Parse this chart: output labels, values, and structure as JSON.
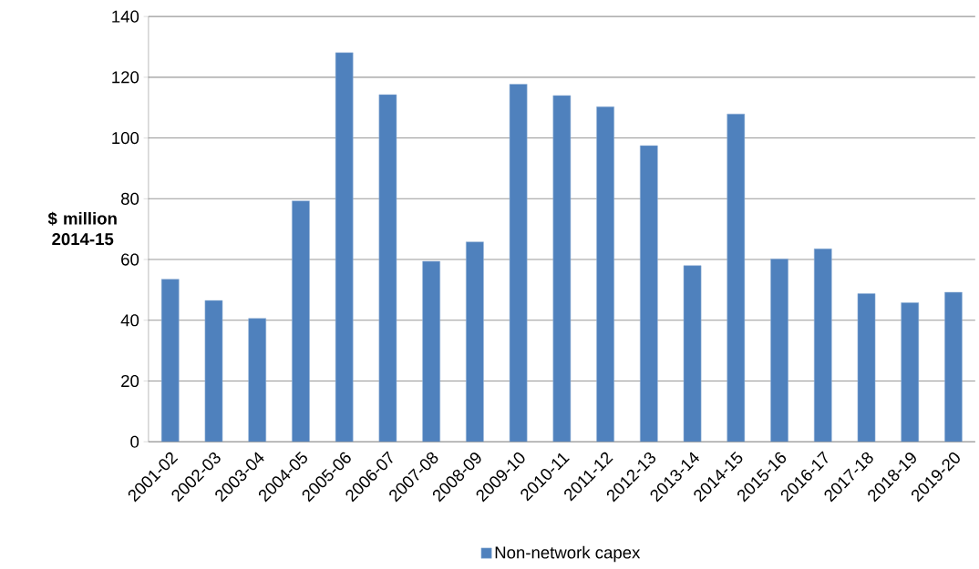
{
  "chart_data": {
    "type": "bar",
    "ylabel": "$ million 2014-15",
    "categories": [
      "2001-02",
      "2002-03",
      "2003-04",
      "2004-05",
      "2005-06",
      "2006-07",
      "2007-08",
      "2008-09",
      "2009-10",
      "2010-11",
      "2011-12",
      "2012-13",
      "2013-14",
      "2014-15",
      "2015-16",
      "2016-17",
      "2017-18",
      "2018-19",
      "2019-20"
    ],
    "series": [
      {
        "name": "Non-network capex",
        "color": "#4f81bd",
        "values": [
          53.5,
          46.5,
          40.6,
          79.3,
          128.1,
          114.3,
          59.4,
          65.8,
          117.7,
          114.0,
          110.3,
          97.5,
          58.0,
          107.9,
          60.2,
          63.5,
          48.8,
          45.8,
          49.2
        ]
      }
    ],
    "ylim": [
      0,
      140
    ],
    "yticks": [
      0,
      20,
      40,
      60,
      80,
      100,
      120,
      140
    ],
    "grid": "y",
    "legend": "bottom"
  }
}
